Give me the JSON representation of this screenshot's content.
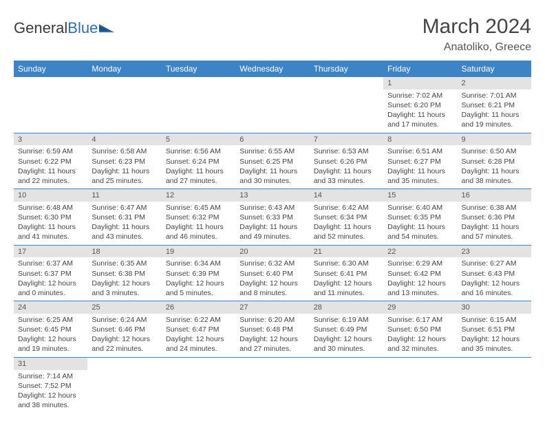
{
  "logo": {
    "text_left": "General",
    "text_right": "Blue"
  },
  "title": {
    "month": "March 2024",
    "location": "Anatoliko, Greece"
  },
  "colors": {
    "header_bg": "#3d84c6",
    "header_text": "#ffffff",
    "daybar_bg": "#e3e3e3",
    "cell_border": "#3d84c6",
    "logo_blue": "#2f6fb0",
    "logo_dark": "#3a3a3a"
  },
  "columns": [
    "Sunday",
    "Monday",
    "Tuesday",
    "Wednesday",
    "Thursday",
    "Friday",
    "Saturday"
  ],
  "weeks": [
    [
      null,
      null,
      null,
      null,
      null,
      {
        "d": "1",
        "sr": "Sunrise: 7:02 AM",
        "ss": "Sunset: 6:20 PM",
        "dl1": "Daylight: 11 hours",
        "dl2": "and 17 minutes."
      },
      {
        "d": "2",
        "sr": "Sunrise: 7:01 AM",
        "ss": "Sunset: 6:21 PM",
        "dl1": "Daylight: 11 hours",
        "dl2": "and 19 minutes."
      }
    ],
    [
      {
        "d": "3",
        "sr": "Sunrise: 6:59 AM",
        "ss": "Sunset: 6:22 PM",
        "dl1": "Daylight: 11 hours",
        "dl2": "and 22 minutes."
      },
      {
        "d": "4",
        "sr": "Sunrise: 6:58 AM",
        "ss": "Sunset: 6:23 PM",
        "dl1": "Daylight: 11 hours",
        "dl2": "and 25 minutes."
      },
      {
        "d": "5",
        "sr": "Sunrise: 6:56 AM",
        "ss": "Sunset: 6:24 PM",
        "dl1": "Daylight: 11 hours",
        "dl2": "and 27 minutes."
      },
      {
        "d": "6",
        "sr": "Sunrise: 6:55 AM",
        "ss": "Sunset: 6:25 PM",
        "dl1": "Daylight: 11 hours",
        "dl2": "and 30 minutes."
      },
      {
        "d": "7",
        "sr": "Sunrise: 6:53 AM",
        "ss": "Sunset: 6:26 PM",
        "dl1": "Daylight: 11 hours",
        "dl2": "and 33 minutes."
      },
      {
        "d": "8",
        "sr": "Sunrise: 6:51 AM",
        "ss": "Sunset: 6:27 PM",
        "dl1": "Daylight: 11 hours",
        "dl2": "and 35 minutes."
      },
      {
        "d": "9",
        "sr": "Sunrise: 6:50 AM",
        "ss": "Sunset: 6:28 PM",
        "dl1": "Daylight: 11 hours",
        "dl2": "and 38 minutes."
      }
    ],
    [
      {
        "d": "10",
        "sr": "Sunrise: 6:48 AM",
        "ss": "Sunset: 6:30 PM",
        "dl1": "Daylight: 11 hours",
        "dl2": "and 41 minutes."
      },
      {
        "d": "11",
        "sr": "Sunrise: 6:47 AM",
        "ss": "Sunset: 6:31 PM",
        "dl1": "Daylight: 11 hours",
        "dl2": "and 43 minutes."
      },
      {
        "d": "12",
        "sr": "Sunrise: 6:45 AM",
        "ss": "Sunset: 6:32 PM",
        "dl1": "Daylight: 11 hours",
        "dl2": "and 46 minutes."
      },
      {
        "d": "13",
        "sr": "Sunrise: 6:43 AM",
        "ss": "Sunset: 6:33 PM",
        "dl1": "Daylight: 11 hours",
        "dl2": "and 49 minutes."
      },
      {
        "d": "14",
        "sr": "Sunrise: 6:42 AM",
        "ss": "Sunset: 6:34 PM",
        "dl1": "Daylight: 11 hours",
        "dl2": "and 52 minutes."
      },
      {
        "d": "15",
        "sr": "Sunrise: 6:40 AM",
        "ss": "Sunset: 6:35 PM",
        "dl1": "Daylight: 11 hours",
        "dl2": "and 54 minutes."
      },
      {
        "d": "16",
        "sr": "Sunrise: 6:38 AM",
        "ss": "Sunset: 6:36 PM",
        "dl1": "Daylight: 11 hours",
        "dl2": "and 57 minutes."
      }
    ],
    [
      {
        "d": "17",
        "sr": "Sunrise: 6:37 AM",
        "ss": "Sunset: 6:37 PM",
        "dl1": "Daylight: 12 hours",
        "dl2": "and 0 minutes."
      },
      {
        "d": "18",
        "sr": "Sunrise: 6:35 AM",
        "ss": "Sunset: 6:38 PM",
        "dl1": "Daylight: 12 hours",
        "dl2": "and 3 minutes."
      },
      {
        "d": "19",
        "sr": "Sunrise: 6:34 AM",
        "ss": "Sunset: 6:39 PM",
        "dl1": "Daylight: 12 hours",
        "dl2": "and 5 minutes."
      },
      {
        "d": "20",
        "sr": "Sunrise: 6:32 AM",
        "ss": "Sunset: 6:40 PM",
        "dl1": "Daylight: 12 hours",
        "dl2": "and 8 minutes."
      },
      {
        "d": "21",
        "sr": "Sunrise: 6:30 AM",
        "ss": "Sunset: 6:41 PM",
        "dl1": "Daylight: 12 hours",
        "dl2": "and 11 minutes."
      },
      {
        "d": "22",
        "sr": "Sunrise: 6:29 AM",
        "ss": "Sunset: 6:42 PM",
        "dl1": "Daylight: 12 hours",
        "dl2": "and 13 minutes."
      },
      {
        "d": "23",
        "sr": "Sunrise: 6:27 AM",
        "ss": "Sunset: 6:43 PM",
        "dl1": "Daylight: 12 hours",
        "dl2": "and 16 minutes."
      }
    ],
    [
      {
        "d": "24",
        "sr": "Sunrise: 6:25 AM",
        "ss": "Sunset: 6:45 PM",
        "dl1": "Daylight: 12 hours",
        "dl2": "and 19 minutes."
      },
      {
        "d": "25",
        "sr": "Sunrise: 6:24 AM",
        "ss": "Sunset: 6:46 PM",
        "dl1": "Daylight: 12 hours",
        "dl2": "and 22 minutes."
      },
      {
        "d": "26",
        "sr": "Sunrise: 6:22 AM",
        "ss": "Sunset: 6:47 PM",
        "dl1": "Daylight: 12 hours",
        "dl2": "and 24 minutes."
      },
      {
        "d": "27",
        "sr": "Sunrise: 6:20 AM",
        "ss": "Sunset: 6:48 PM",
        "dl1": "Daylight: 12 hours",
        "dl2": "and 27 minutes."
      },
      {
        "d": "28",
        "sr": "Sunrise: 6:19 AM",
        "ss": "Sunset: 6:49 PM",
        "dl1": "Daylight: 12 hours",
        "dl2": "and 30 minutes."
      },
      {
        "d": "29",
        "sr": "Sunrise: 6:17 AM",
        "ss": "Sunset: 6:50 PM",
        "dl1": "Daylight: 12 hours",
        "dl2": "and 32 minutes."
      },
      {
        "d": "30",
        "sr": "Sunrise: 6:15 AM",
        "ss": "Sunset: 6:51 PM",
        "dl1": "Daylight: 12 hours",
        "dl2": "and 35 minutes."
      }
    ],
    [
      {
        "d": "31",
        "sr": "Sunrise: 7:14 AM",
        "ss": "Sunset: 7:52 PM",
        "dl1": "Daylight: 12 hours",
        "dl2": "and 38 minutes."
      },
      null,
      null,
      null,
      null,
      null,
      null
    ]
  ]
}
